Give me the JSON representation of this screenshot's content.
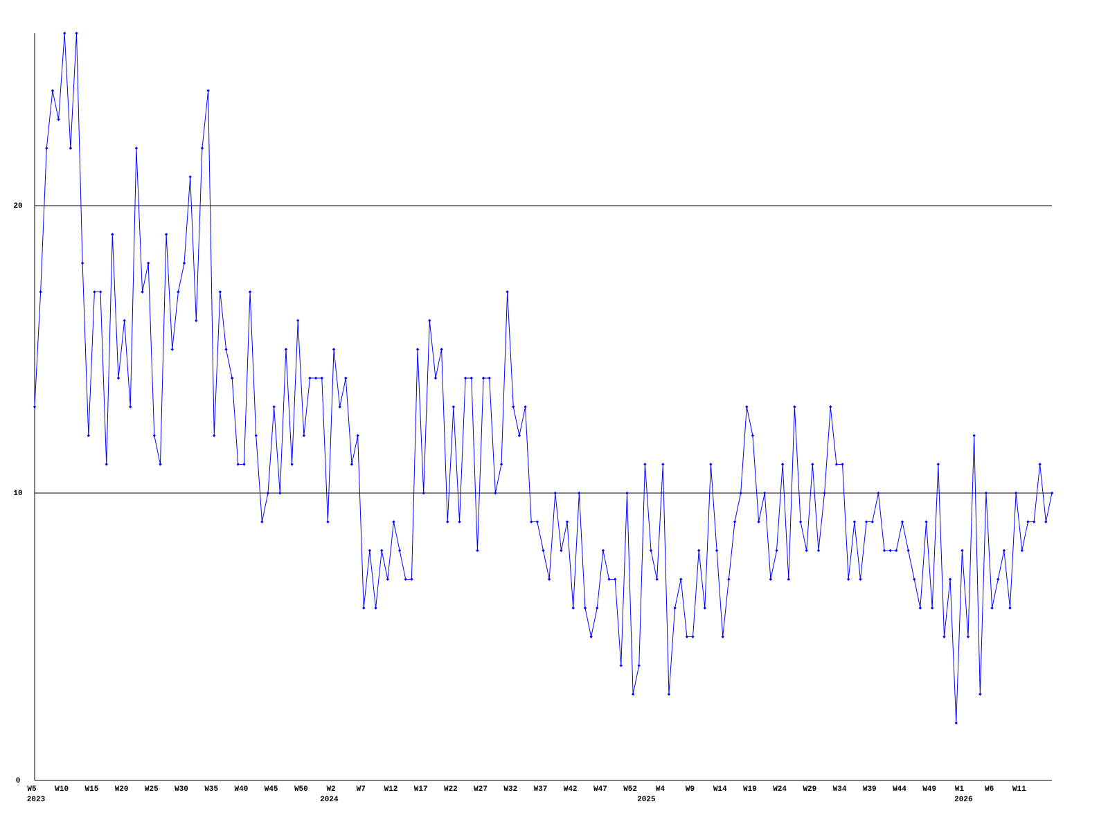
{
  "chart_data": {
    "type": "line",
    "categories": [
      "W5",
      null,
      null,
      null,
      null,
      "W10",
      null,
      null,
      null,
      null,
      "W15",
      null,
      null,
      null,
      null,
      "W20",
      null,
      null,
      null,
      null,
      "W25",
      null,
      null,
      null,
      null,
      "W30",
      null,
      null,
      null,
      null,
      "W35",
      null,
      null,
      null,
      null,
      "W40",
      null,
      null,
      null,
      null,
      "W45",
      null,
      null,
      null,
      null,
      "W50",
      null,
      null,
      null,
      null,
      "W2",
      null,
      null,
      null,
      null,
      "W7",
      null,
      null,
      null,
      null,
      "W12",
      null,
      null,
      null,
      null,
      "W17",
      null,
      null,
      null,
      null,
      "W22",
      null,
      null,
      null,
      null,
      "W27",
      null,
      null,
      null,
      null,
      "W32",
      null,
      null,
      null,
      null,
      "W37",
      null,
      null,
      null,
      null,
      "W42",
      null,
      null,
      null,
      null,
      "W47",
      null,
      null,
      null,
      null,
      "W52",
      null,
      null,
      null,
      null,
      "W4",
      null,
      null,
      null,
      null,
      "W9",
      null,
      null,
      null,
      null,
      "W14",
      null,
      null,
      null,
      null,
      "W19",
      null,
      null,
      null,
      null,
      "W24",
      null,
      null,
      null,
      null,
      "W29",
      null,
      null,
      null,
      null,
      "W34",
      null,
      null,
      null,
      null,
      "W39",
      null,
      null,
      null,
      null,
      "W44",
      null,
      null,
      null,
      null,
      "W49",
      null,
      null,
      null,
      null,
      "W1",
      null,
      null,
      null,
      null,
      "W6",
      null,
      null,
      null,
      null,
      "W11",
      null,
      null,
      null,
      null,
      null
    ],
    "year_labels": [
      "2023",
      null,
      null,
      null,
      null,
      null,
      null,
      null,
      null,
      null,
      null,
      null,
      null,
      null,
      null,
      null,
      null,
      null,
      null,
      null,
      null,
      null,
      null,
      null,
      null,
      null,
      null,
      null,
      null,
      null,
      null,
      null,
      null,
      null,
      null,
      null,
      null,
      null,
      null,
      null,
      null,
      null,
      null,
      null,
      null,
      null,
      null,
      null,
      null,
      "2024",
      null,
      null,
      null,
      null,
      null,
      null,
      null,
      null,
      null,
      null,
      null,
      null,
      null,
      null,
      null,
      null,
      null,
      null,
      null,
      null,
      null,
      null,
      null,
      null,
      null,
      null,
      null,
      null,
      null,
      null,
      null,
      null,
      null,
      null,
      null,
      null,
      null,
      null,
      null,
      null,
      null,
      null,
      null,
      null,
      null,
      null,
      null,
      null,
      null,
      null,
      null,
      null,
      "2025",
      null,
      null,
      null,
      null,
      null,
      null,
      null,
      null,
      null,
      null,
      null,
      null,
      null,
      null,
      null,
      null,
      null,
      null,
      null,
      null,
      null,
      null,
      null,
      null,
      null,
      null,
      null,
      null,
      null,
      null,
      null,
      null,
      null,
      null,
      null,
      null,
      null,
      null,
      null,
      null,
      null,
      null,
      null,
      null,
      null,
      null,
      null,
      null,
      null,
      null,
      null,
      null,
      "2026",
      null,
      null,
      null,
      null,
      null,
      null,
      null,
      null,
      null,
      null,
      null,
      null,
      null,
      null,
      null
    ],
    "values": [
      13,
      17,
      22,
      24,
      23,
      26,
      22,
      26,
      18,
      12,
      17,
      17,
      11,
      19,
      14,
      16,
      13,
      22,
      17,
      18,
      12,
      11,
      19,
      15,
      17,
      18,
      21,
      16,
      22,
      24,
      12,
      17,
      15,
      14,
      11,
      11,
      17,
      12,
      9,
      10,
      13,
      10,
      15,
      11,
      16,
      12,
      14,
      14,
      14,
      9,
      15,
      13,
      14,
      11,
      12,
      6,
      8,
      6,
      8,
      7,
      9,
      8,
      7,
      7,
      15,
      10,
      16,
      14,
      15,
      9,
      13,
      9,
      14,
      14,
      8,
      14,
      14,
      10,
      11,
      17,
      13,
      12,
      13,
      9,
      9,
      8,
      7,
      10,
      8,
      9,
      6,
      10,
      6,
      5,
      6,
      8,
      7,
      7,
      4,
      10,
      3,
      4,
      11,
      8,
      7,
      11,
      3,
      6,
      7,
      5,
      5,
      8,
      6,
      11,
      8,
      5,
      7,
      9,
      10,
      13,
      12,
      9,
      10,
      7,
      8,
      11,
      7,
      13,
      9,
      8,
      11,
      8,
      10,
      13,
      11,
      11,
      7,
      9,
      7,
      9,
      9,
      10,
      8,
      8,
      8,
      9,
      8,
      7,
      6,
      9,
      6,
      11,
      5,
      7,
      2,
      8,
      5,
      12,
      3,
      10,
      6,
      7,
      8,
      6,
      10,
      8,
      9,
      9,
      11,
      9,
      10
    ],
    "color": "#0000ff",
    "ylim": [
      0,
      26
    ],
    "yticks": [
      0,
      10,
      20
    ],
    "grid": true
  }
}
